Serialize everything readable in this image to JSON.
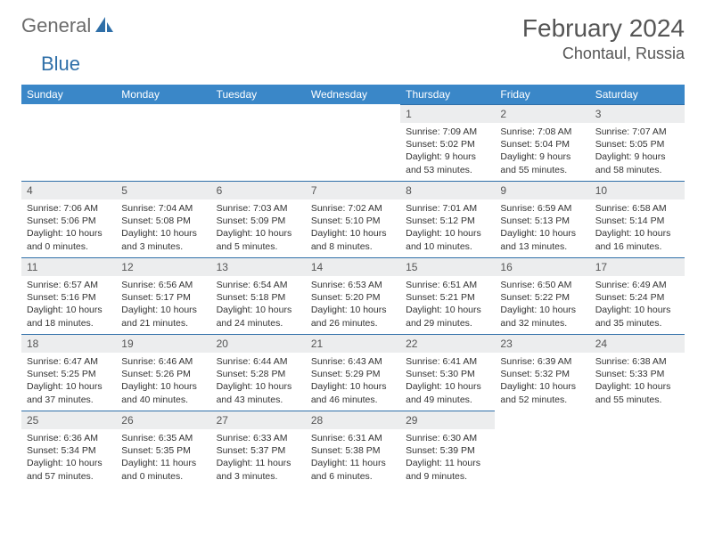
{
  "brand": {
    "part1": "General",
    "part2": "Blue"
  },
  "title": "February 2024",
  "location": "Chontaul, Russia",
  "colors": {
    "header_bg": "#3a87c8",
    "header_fg": "#ffffff",
    "daynum_bg": "#ecedee",
    "rule": "#2f6fa8",
    "text": "#333333",
    "title_color": "#555555"
  },
  "days_of_week": [
    "Sunday",
    "Monday",
    "Tuesday",
    "Wednesday",
    "Thursday",
    "Friday",
    "Saturday"
  ],
  "grid": [
    [
      null,
      null,
      null,
      null,
      {
        "n": "1",
        "sr": "Sunrise: 7:09 AM",
        "ss": "Sunset: 5:02 PM",
        "dl1": "Daylight: 9 hours",
        "dl2": "and 53 minutes."
      },
      {
        "n": "2",
        "sr": "Sunrise: 7:08 AM",
        "ss": "Sunset: 5:04 PM",
        "dl1": "Daylight: 9 hours",
        "dl2": "and 55 minutes."
      },
      {
        "n": "3",
        "sr": "Sunrise: 7:07 AM",
        "ss": "Sunset: 5:05 PM",
        "dl1": "Daylight: 9 hours",
        "dl2": "and 58 minutes."
      }
    ],
    [
      {
        "n": "4",
        "sr": "Sunrise: 7:06 AM",
        "ss": "Sunset: 5:06 PM",
        "dl1": "Daylight: 10 hours",
        "dl2": "and 0 minutes."
      },
      {
        "n": "5",
        "sr": "Sunrise: 7:04 AM",
        "ss": "Sunset: 5:08 PM",
        "dl1": "Daylight: 10 hours",
        "dl2": "and 3 minutes."
      },
      {
        "n": "6",
        "sr": "Sunrise: 7:03 AM",
        "ss": "Sunset: 5:09 PM",
        "dl1": "Daylight: 10 hours",
        "dl2": "and 5 minutes."
      },
      {
        "n": "7",
        "sr": "Sunrise: 7:02 AM",
        "ss": "Sunset: 5:10 PM",
        "dl1": "Daylight: 10 hours",
        "dl2": "and 8 minutes."
      },
      {
        "n": "8",
        "sr": "Sunrise: 7:01 AM",
        "ss": "Sunset: 5:12 PM",
        "dl1": "Daylight: 10 hours",
        "dl2": "and 10 minutes."
      },
      {
        "n": "9",
        "sr": "Sunrise: 6:59 AM",
        "ss": "Sunset: 5:13 PM",
        "dl1": "Daylight: 10 hours",
        "dl2": "and 13 minutes."
      },
      {
        "n": "10",
        "sr": "Sunrise: 6:58 AM",
        "ss": "Sunset: 5:14 PM",
        "dl1": "Daylight: 10 hours",
        "dl2": "and 16 minutes."
      }
    ],
    [
      {
        "n": "11",
        "sr": "Sunrise: 6:57 AM",
        "ss": "Sunset: 5:16 PM",
        "dl1": "Daylight: 10 hours",
        "dl2": "and 18 minutes."
      },
      {
        "n": "12",
        "sr": "Sunrise: 6:56 AM",
        "ss": "Sunset: 5:17 PM",
        "dl1": "Daylight: 10 hours",
        "dl2": "and 21 minutes."
      },
      {
        "n": "13",
        "sr": "Sunrise: 6:54 AM",
        "ss": "Sunset: 5:18 PM",
        "dl1": "Daylight: 10 hours",
        "dl2": "and 24 minutes."
      },
      {
        "n": "14",
        "sr": "Sunrise: 6:53 AM",
        "ss": "Sunset: 5:20 PM",
        "dl1": "Daylight: 10 hours",
        "dl2": "and 26 minutes."
      },
      {
        "n": "15",
        "sr": "Sunrise: 6:51 AM",
        "ss": "Sunset: 5:21 PM",
        "dl1": "Daylight: 10 hours",
        "dl2": "and 29 minutes."
      },
      {
        "n": "16",
        "sr": "Sunrise: 6:50 AM",
        "ss": "Sunset: 5:22 PM",
        "dl1": "Daylight: 10 hours",
        "dl2": "and 32 minutes."
      },
      {
        "n": "17",
        "sr": "Sunrise: 6:49 AM",
        "ss": "Sunset: 5:24 PM",
        "dl1": "Daylight: 10 hours",
        "dl2": "and 35 minutes."
      }
    ],
    [
      {
        "n": "18",
        "sr": "Sunrise: 6:47 AM",
        "ss": "Sunset: 5:25 PM",
        "dl1": "Daylight: 10 hours",
        "dl2": "and 37 minutes."
      },
      {
        "n": "19",
        "sr": "Sunrise: 6:46 AM",
        "ss": "Sunset: 5:26 PM",
        "dl1": "Daylight: 10 hours",
        "dl2": "and 40 minutes."
      },
      {
        "n": "20",
        "sr": "Sunrise: 6:44 AM",
        "ss": "Sunset: 5:28 PM",
        "dl1": "Daylight: 10 hours",
        "dl2": "and 43 minutes."
      },
      {
        "n": "21",
        "sr": "Sunrise: 6:43 AM",
        "ss": "Sunset: 5:29 PM",
        "dl1": "Daylight: 10 hours",
        "dl2": "and 46 minutes."
      },
      {
        "n": "22",
        "sr": "Sunrise: 6:41 AM",
        "ss": "Sunset: 5:30 PM",
        "dl1": "Daylight: 10 hours",
        "dl2": "and 49 minutes."
      },
      {
        "n": "23",
        "sr": "Sunrise: 6:39 AM",
        "ss": "Sunset: 5:32 PM",
        "dl1": "Daylight: 10 hours",
        "dl2": "and 52 minutes."
      },
      {
        "n": "24",
        "sr": "Sunrise: 6:38 AM",
        "ss": "Sunset: 5:33 PM",
        "dl1": "Daylight: 10 hours",
        "dl2": "and 55 minutes."
      }
    ],
    [
      {
        "n": "25",
        "sr": "Sunrise: 6:36 AM",
        "ss": "Sunset: 5:34 PM",
        "dl1": "Daylight: 10 hours",
        "dl2": "and 57 minutes."
      },
      {
        "n": "26",
        "sr": "Sunrise: 6:35 AM",
        "ss": "Sunset: 5:35 PM",
        "dl1": "Daylight: 11 hours",
        "dl2": "and 0 minutes."
      },
      {
        "n": "27",
        "sr": "Sunrise: 6:33 AM",
        "ss": "Sunset: 5:37 PM",
        "dl1": "Daylight: 11 hours",
        "dl2": "and 3 minutes."
      },
      {
        "n": "28",
        "sr": "Sunrise: 6:31 AM",
        "ss": "Sunset: 5:38 PM",
        "dl1": "Daylight: 11 hours",
        "dl2": "and 6 minutes."
      },
      {
        "n": "29",
        "sr": "Sunrise: 6:30 AM",
        "ss": "Sunset: 5:39 PM",
        "dl1": "Daylight: 11 hours",
        "dl2": "and 9 minutes."
      },
      null,
      null
    ]
  ]
}
